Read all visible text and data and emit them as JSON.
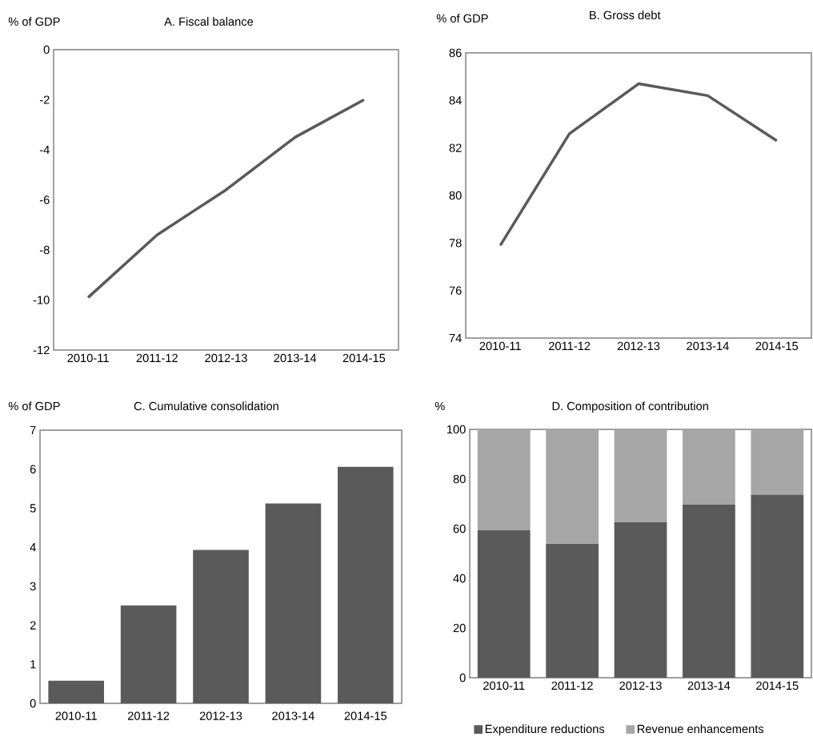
{
  "chart_data": [
    {
      "type": "line",
      "title": "A. Fiscal balance",
      "ylabel": "% of GDP",
      "categories": [
        "2010-11",
        "2011-12",
        "2012-13",
        "2013-14",
        "2014-15"
      ],
      "values": [
        -9.9,
        -7.4,
        -5.6,
        -3.5,
        -2.0
      ],
      "color": "#595959",
      "ylim": [
        -12,
        0
      ],
      "yticks": [
        -12,
        -10,
        -8,
        -6,
        -4,
        -2,
        0
      ]
    },
    {
      "type": "line",
      "title": "B. Gross debt",
      "ylabel": "% of GDP",
      "categories": [
        "2010-11",
        "2011-12",
        "2012-13",
        "2013-14",
        "2014-15"
      ],
      "values": [
        77.9,
        82.6,
        84.7,
        84.2,
        82.3
      ],
      "color": "#595959",
      "ylim": [
        74,
        86
      ],
      "yticks": [
        74,
        76,
        78,
        80,
        82,
        84,
        86
      ]
    },
    {
      "type": "bar",
      "title": "C. Cumulative  consolidation",
      "ylabel": "% of GDP",
      "categories": [
        "2010-11",
        "2011-12",
        "2012-13",
        "2013-14",
        "2014-15"
      ],
      "values": [
        0.58,
        2.51,
        3.93,
        5.12,
        6.06
      ],
      "color": "#5a5a5a",
      "ylim": [
        0,
        7
      ],
      "yticks": [
        0,
        1,
        2,
        3,
        4,
        5,
        6,
        7
      ]
    },
    {
      "type": "bar",
      "title": "D.  Composition of contribution",
      "ylabel": "%",
      "categories": [
        "2010-11",
        "2011-12",
        "2012-13",
        "2013-14",
        "2014-15"
      ],
      "stacked": true,
      "legend": "bottom",
      "ylim": [
        0,
        100
      ],
      "yticks": [
        0,
        20,
        40,
        60,
        80,
        100
      ],
      "series": [
        {
          "name": "Expenditure reductions",
          "color": "#5a5a5a",
          "values": [
            59.4,
            53.9,
            62.6,
            69.7,
            73.7
          ]
        },
        {
          "name": "Revenue enhancements",
          "color": "#a6a6a6",
          "values": [
            40.6,
            46.1,
            37.4,
            30.3,
            26.3
          ]
        }
      ]
    }
  ]
}
